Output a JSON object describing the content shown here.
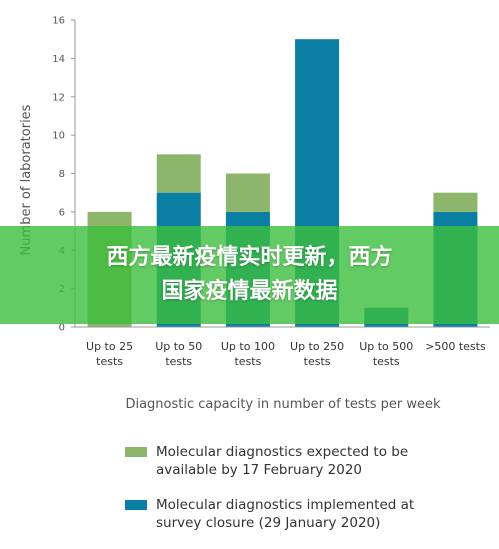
{
  "chart_data": {
    "type": "bar",
    "stacked": true,
    "categories": [
      "Up to 25\ntests",
      "Up to 50\ntests",
      "Up to 100\ntests",
      "Up to 250\ntests",
      "Up to 500\ntests",
      ">500 tests"
    ],
    "series": [
      {
        "name": "Molecular diagnostics implemented at survey closure (29 January 2020)",
        "color": "#0b7ea3",
        "values": [
          0,
          7,
          6,
          15,
          1,
          6
        ]
      },
      {
        "name": "Molecular diagnostics expected to be available by 17 February 2020",
        "color": "#8db56b",
        "values": [
          6,
          2,
          2,
          0,
          0,
          1
        ]
      }
    ],
    "xlabel": "Diagnostic capacity in number of tests per week",
    "ylabel": "Number of laboratories",
    "ylim": [
      0,
      16
    ],
    "yticks": [
      0,
      2,
      4,
      6,
      8,
      10,
      12,
      14,
      16
    ],
    "grid": false,
    "legend_position": "bottom"
  },
  "legend": {
    "items": [
      {
        "color": "#8db56b",
        "line1": "Molecular diagnostics expected to be",
        "line2": "available by 17 February 2020"
      },
      {
        "color": "#0b7ea3",
        "line1": "Molecular diagnostics implemented at",
        "line2": "survey closure (29 January 2020)"
      }
    ]
  },
  "banner": {
    "line1": "西方最新疫情实时更新，西方",
    "line2": "国家疫情最新数据"
  }
}
